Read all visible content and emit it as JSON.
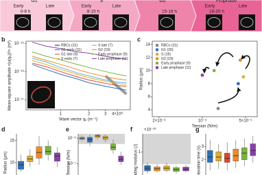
{
  "timeline": {
    "phases": [
      {
        "name": "G1",
        "stages": [
          {
            "name": "Early",
            "time": "0-8 h"
          },
          {
            "name": "Late"
          }
        ]
      },
      {
        "name": "S",
        "stages": [
          {
            "name": "Early",
            "time": "8-15 h"
          },
          {
            "name": "Late"
          }
        ]
      },
      {
        "name": "G2",
        "stages": [
          {
            "time": "15-18 h"
          }
        ]
      },
      {
        "name": "Prophase",
        "stages": [
          {
            "name": "Early",
            "time": "18-20 h"
          },
          {
            "name": "Late"
          }
        ]
      }
    ]
  },
  "chart_data": [
    {
      "label": "b",
      "type": "line",
      "xlabel": "Wave vector qₓ (m⁻¹)",
      "ylabel": "Mean-square amplitude <|u(qₓ)|²> (m²)",
      "xscale": "log",
      "yscale": "log",
      "xlim": [
        430000,
        5500000
      ],
      "ylim": [
        4.4e-18,
        1.2e-15
      ],
      "xticks": [
        {
          "value": 1000000,
          "label": "1"
        },
        {
          "value": 2000000,
          "label": "2"
        },
        {
          "value": 3000000,
          "label": "3"
        },
        {
          "value": 4000000,
          "label": "4×10⁶"
        }
      ],
      "yticks": [
        {
          "value": 1e-15,
          "label": "10⁻¹⁵"
        },
        {
          "value": 1e-16,
          "label": "10⁻¹⁶"
        },
        {
          "value": 1e-17,
          "label": "10⁻¹⁷"
        }
      ],
      "legend": "upper right",
      "x": [
        500000,
        700000,
        1000000,
        1500000,
        2000000,
        3000000,
        4000000,
        5000000
      ],
      "series": [
        {
          "name": "RBCs (31)",
          "color": "#9a9a9a",
          "values": [
            null,
            null,
            null,
            null,
            null,
            7e-17,
            3e-17,
            1.6e-17
          ]
        },
        {
          "name": "G1 early (11)",
          "color": "#2f6fb8",
          "values": [
            1.8e-16,
            1.2e-16,
            8e-17,
            5.5e-17,
            4e-17,
            3e-17,
            2.5e-17,
            2.2e-17
          ]
        },
        {
          "name": "G1 late (6)",
          "color": "#e0452d",
          "values": [
            2e-16,
            1.5e-16,
            1e-16,
            6.5e-17,
            5e-17,
            3.8e-17,
            3.2e-17,
            3e-17
          ]
        },
        {
          "name": "S early (7)",
          "color": "#e2ad2c",
          "values": [
            2.5e-16,
            1.8e-16,
            1.2e-16,
            8e-17,
            6e-17,
            4.5e-17,
            3.8e-17,
            3.5e-17
          ]
        },
        {
          "name": "S late (7)",
          "color": "#5fb0e0",
          "values": [
            3e-16,
            2.2e-16,
            1.4e-16,
            9e-17,
            7e-17,
            5e-17,
            4.2e-17,
            4e-17
          ]
        },
        {
          "name": "G2 (19)",
          "color": "#f08a24",
          "values": [
            3.5e-16,
            2.5e-16,
            1.8e-16,
            1.2e-16,
            9e-17,
            6.5e-17,
            5.5e-17,
            5e-17
          ]
        },
        {
          "name": "Early prophase (9)",
          "color": "#7bb341",
          "values": [
            5e-16,
            3.5e-16,
            2.6e-16,
            1.8e-16,
            1.4e-16,
            1e-16,
            8e-17,
            7e-17
          ]
        },
        {
          "name": "Late prophase (11)",
          "color": "#8b3fa8",
          "values": [
            1.1e-15,
            8e-16,
            6.5e-16,
            5e-16,
            4.5e-16,
            3.5e-16,
            3e-16,
            2.8e-16
          ]
        }
      ]
    },
    {
      "label": "c",
      "type": "scatter",
      "xlabel": "Tension (N/m)",
      "ylabel": "Radius (μm)",
      "xscale": "log",
      "xlim": [
        1.55e-06,
        7.7e-05
      ],
      "ylim": [
        2.95,
        14.5
      ],
      "xticks": [
        {
          "value": 2e-06,
          "label": "2×10⁻⁶"
        },
        {
          "value": 1e-05,
          "label": "10⁻⁵"
        },
        {
          "value": 5e-05,
          "label": "5×10⁻⁵"
        }
      ],
      "yticks": [
        4,
        6,
        8,
        10,
        12,
        14
      ],
      "legend": "upper left",
      "series": [
        {
          "name": "RBCs (31)",
          "color": "#8a8a8a",
          "x": [
            1.8e-05
          ],
          "values": [
            4.2
          ]
        },
        {
          "name": "G1 (20)",
          "color": "#2f6fb8",
          "x": [
            3.8e-05
          ],
          "values": [
            8
          ]
        },
        {
          "name": "S (16)",
          "color": "#e2ad2c",
          "x": [
            4.6e-05
          ],
          "values": [
            9.05
          ]
        },
        {
          "name": "G2 (19)",
          "color": "#f08a24",
          "x": [
            4.1e-05
          ],
          "values": [
            11.6
          ]
        },
        {
          "name": "Early prophase (9)",
          "color": "#7bb341",
          "x": [
            1.55e-05
          ],
          "values": [
            10
          ]
        },
        {
          "name": "Late prophase (11)",
          "color": "#8b3fa8",
          "x": [
            1e-05
          ],
          "values": [
            9.3
          ]
        }
      ]
    },
    {
      "label": "d",
      "type": "box",
      "ylabel": "Radius (μm)",
      "ylim": [
        7.2,
        16.5
      ],
      "yticks": [
        10,
        15
      ],
      "boxes": [
        {
          "color": "#2f6fb8",
          "min": 8,
          "q1": 8.5,
          "median": 9.5,
          "q3": 10.3,
          "max": 11.8
        },
        {
          "color": "#e2ad2c",
          "min": 9,
          "q1": 10.2,
          "median": 10.8,
          "q3": 11.5,
          "max": 13
        },
        {
          "color": "#f08a24",
          "min": 9.5,
          "q1": 11,
          "median": 12.3,
          "q3": 13.6,
          "max": 16
        },
        {
          "color": "#7bb341",
          "min": 10.5,
          "q1": 11.8,
          "median": 12.5,
          "q3": 13.7,
          "max": 15
        },
        {
          "color": "#8b3fa8",
          "min": 9,
          "q1": 10.3,
          "median": 11.5,
          "q3": 12.2,
          "max": 13.5
        }
      ]
    },
    {
      "label": "e",
      "type": "box",
      "ylabel": "Tension (N/m)",
      "yscale": "log",
      "ylim": [
        3.6e-08,
        1.5e-06
      ],
      "yticks": [
        {
          "value": 1e-06,
          "label": "10⁻⁶"
        },
        {
          "value": 1e-07,
          "label": "10⁻⁷"
        }
      ],
      "shaded_range": [
        6e-07,
        1.5e-06
      ],
      "boxes": [
        {
          "color": "#9a9a9a",
          "min": 8e-07,
          "q1": 9e-07,
          "median": 1e-06,
          "q3": 1.1e-06,
          "max": 1.3e-06
        },
        {
          "color": "#2f6fb8",
          "min": 5e-07,
          "q1": 7e-07,
          "median": 9e-07,
          "q3": 1.1e-06,
          "max": 1.4e-06
        },
        {
          "color": "#f08a24",
          "min": 9e-07,
          "q1": 1.1e-06,
          "median": 1.25e-06,
          "q3": 1.35e-06,
          "max": 1.45e-06
        },
        {
          "color": "#e2ad2c",
          "min": 7e-07,
          "q1": 9e-07,
          "median": 1.05e-06,
          "q3": 1.2e-06,
          "max": 1.4e-06
        },
        {
          "color": "#7bb341",
          "min": 2.5e-07,
          "q1": 3.5e-07,
          "median": 4.5e-07,
          "q3": 6e-07,
          "max": 9e-07
        },
        {
          "color": "#8b3fa8",
          "min": 9e-08,
          "q1": 1.2e-07,
          "median": 1.5e-07,
          "q3": 2e-07,
          "max": 3e-07
        }
      ]
    },
    {
      "label": "f",
      "type": "box",
      "ylabel": "Bending modulus (J)",
      "scale_label": "×10⁻²⁰",
      "ylim": [
        0.15,
        1.66
      ],
      "yticks": [
        1
      ],
      "shaded_range": [
        0.55,
        1.66
      ],
      "boxes": [
        {
          "color": "#2f6fb8",
          "min": 0.2,
          "q1": 0.3,
          "median": 0.4,
          "q3": 0.5,
          "max": 0.6
        },
        {
          "color": "#f08a24",
          "min": 0.25,
          "q1": 0.3,
          "median": 0.38,
          "q3": 0.45,
          "max": 0.55
        },
        {
          "color": "#e2ad2c",
          "min": 0.25,
          "q1": 0.32,
          "median": 0.4,
          "q3": 0.48,
          "max": 0.6
        },
        {
          "color": "#7bb341",
          "min": 0.2,
          "q1": 0.28,
          "median": 0.35,
          "q3": 0.42,
          "max": 0.5
        },
        {
          "color": "#8b3fa8",
          "min": 0.25,
          "q1": 0.3,
          "median": 0.36,
          "q3": 0.44,
          "max": 0.52
        }
      ]
    },
    {
      "label": "g",
      "type": "box",
      "ylabel": "Relaxation time (s)",
      "ylim": [
        0.85,
        3.95
      ],
      "yticks": [
        2,
        3
      ],
      "boxes": [
        {
          "color": "#2f6fb8",
          "min": 1.2,
          "q1": 1.8,
          "median": 2.2,
          "q3": 2.7,
          "max": 3.5
        },
        {
          "color": "#e2ad2c",
          "min": 1.3,
          "q1": 1.9,
          "median": 2.2,
          "q3": 2.6,
          "max": 3.2
        },
        {
          "color": "#e0452d",
          "min": 1.2,
          "q1": 1.8,
          "median": 2.1,
          "q3": 2.5,
          "max": 3.3
        },
        {
          "color": "#f08a24",
          "min": 1.4,
          "q1": 1.9,
          "median": 2.3,
          "q3": 2.8,
          "max": 3.5
        },
        {
          "color": "#7bb341",
          "min": 1.5,
          "q1": 2,
          "median": 2.5,
          "q3": 2.9,
          "max": 3.6
        },
        {
          "color": "#8b3fa8",
          "min": 1.8,
          "q1": 2.3,
          "median": 2.7,
          "q3": 3.2,
          "max": 3.8
        }
      ]
    }
  ]
}
